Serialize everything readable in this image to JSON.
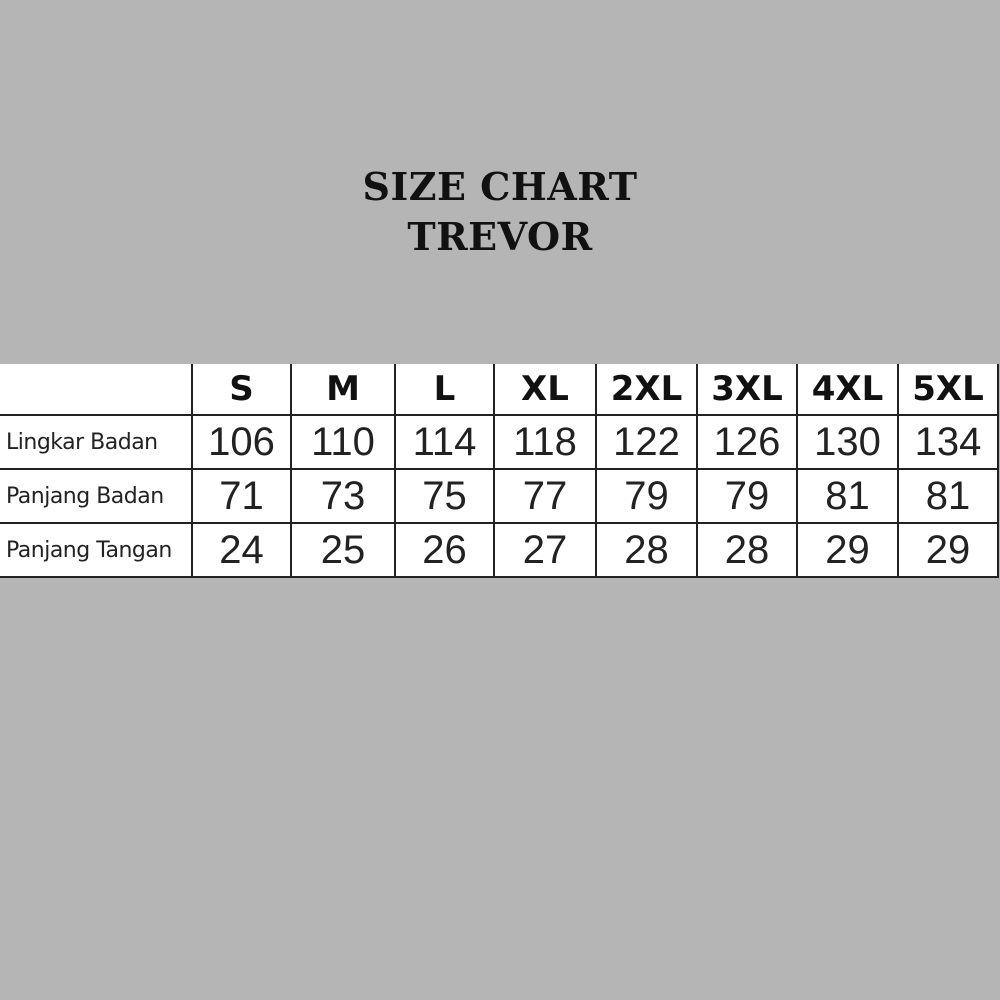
{
  "title": {
    "line1": "SIZE CHART",
    "line2": "TREVOR"
  },
  "table": {
    "headers": [
      "",
      "S",
      "M",
      "L",
      "XL",
      "2XL",
      "3XL",
      "4XL",
      "5XL"
    ],
    "rows": [
      {
        "label": "Lingkar Badan",
        "values": [
          "106",
          "110",
          "114",
          "118",
          "122",
          "126",
          "130",
          "134"
        ]
      },
      {
        "label": "Panjang Badan",
        "values": [
          "71",
          "73",
          "75",
          "77",
          "79",
          "79",
          "81",
          "81"
        ]
      },
      {
        "label": "Panjang Tangan",
        "values": [
          "24",
          "25",
          "26",
          "27",
          "28",
          "28",
          "29",
          "29"
        ]
      }
    ]
  }
}
